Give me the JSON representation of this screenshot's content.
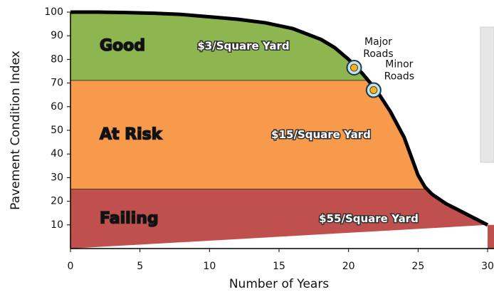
{
  "chart_data": {
    "type": "line",
    "x": [
      0,
      2,
      4,
      6,
      8,
      10,
      12,
      14,
      16,
      18,
      19,
      20,
      21,
      22,
      23,
      24,
      24.5,
      25,
      25.5,
      26,
      27,
      28,
      29,
      30
    ],
    "series": [
      {
        "color": "#000000",
        "values": [
          100,
          100,
          99.8,
          99.5,
          99,
          98,
          97,
          95.5,
          93,
          88.5,
          85,
          80,
          74,
          67,
          58,
          47,
          39,
          31,
          26,
          23,
          19,
          16,
          13,
          10
        ]
      }
    ],
    "zones": [
      {
        "label": "Good",
        "cost": "$3/Square Yard",
        "from": 71,
        "to": 100,
        "color": "#8db550",
        "label_color": "#7cc04a"
      },
      {
        "label": "At Risk",
        "cost": "$15/Square Yard",
        "from": 25,
        "to": 71,
        "color": "#f79a4b",
        "label_color": "#f2e33a"
      },
      {
        "label": "Failing",
        "cost": "$55/Square Yard",
        "from": 0,
        "to": 25,
        "color": "#c0504d",
        "label_color": "#e0403c"
      }
    ],
    "points": [
      {
        "label_lines": [
          "Major",
          "Roads"
        ],
        "x": 20.4,
        "y": 76.5
      },
      {
        "label_lines": [
          "Minor",
          "Roads"
        ],
        "x": 21.8,
        "y": 67
      }
    ],
    "xlabel": "Number of Years",
    "ylabel": "Pavement Condition Index",
    "xlim": [
      0,
      30
    ],
    "ylim": [
      0,
      100
    ],
    "xticks": [
      0,
      5,
      10,
      15,
      20,
      25,
      30
    ],
    "yticks": [
      10,
      20,
      30,
      40,
      50,
      60,
      70,
      80,
      90,
      100
    ]
  }
}
